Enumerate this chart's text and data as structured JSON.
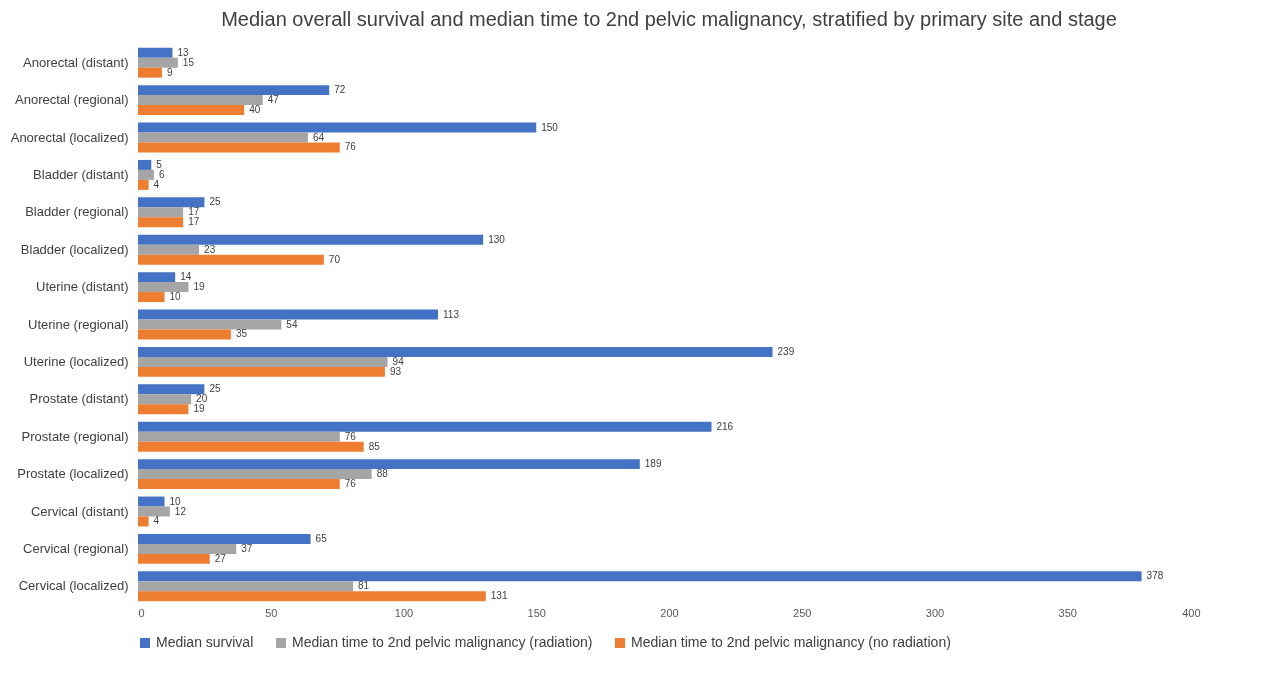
{
  "chart_data": {
    "type": "bar",
    "orientation": "horizontal",
    "title": "Median overall survival and median time to 2nd pelvic malignancy, stratified by primary site and stage",
    "categories": [
      "Anorectal (distant)",
      "Anorectal (regional)",
      "Anorectal (localized)",
      "Bladder (distant)",
      "Bladder (regional)",
      "Bladder (localized)",
      "Uterine (distant)",
      "Uterine (regional)",
      "Uterine (localized)",
      "Prostate (distant)",
      "Prostate (regional)",
      "Prostate (localized)",
      "Cervical (distant)",
      "Cervical (regional)",
      "Cervical (localized)"
    ],
    "series": [
      {
        "name": "Median survival",
        "color": "#4472c4",
        "values": [
          13,
          72,
          150,
          5,
          25,
          130,
          14,
          113,
          239,
          25,
          216,
          189,
          10,
          65,
          378
        ]
      },
      {
        "name": "Median time to 2nd pelvic malignancy (radiation)",
        "color": "#a5a5a5",
        "values": [
          15,
          47,
          64,
          6,
          17,
          23,
          19,
          54,
          94,
          20,
          76,
          88,
          12,
          37,
          81
        ]
      },
      {
        "name": "Median time to 2nd pelvic malignancy (no radiation)",
        "color": "#ed7d31",
        "values": [
          9,
          40,
          76,
          4,
          17,
          70,
          10,
          35,
          93,
          19,
          85,
          76,
          4,
          27,
          131
        ]
      }
    ],
    "xlim": [
      0,
      400
    ],
    "xticks": [
      0,
      50,
      100,
      150,
      200,
      250,
      300,
      350,
      400
    ],
    "data_labels": true,
    "legend": "bottom"
  }
}
